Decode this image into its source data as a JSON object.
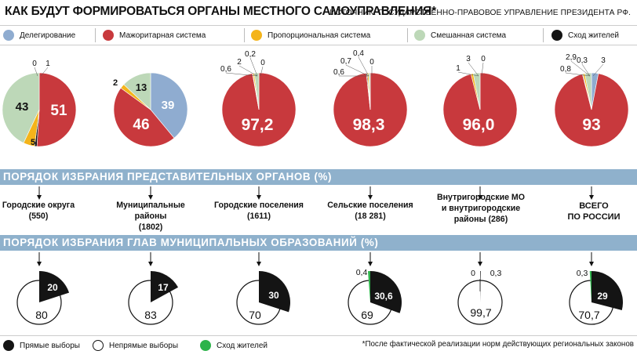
{
  "header": {
    "title": "КАК БУДУТ ФОРМИРОВАТЬСЯ ОРГАНЫ МЕСТНОГО САМОУПРАВЛЕНИЯ*",
    "source": "ИСТОЧНИК: ГОСУДАРСТВЕННО-ПРАВОВОЕ УПРАВЛЕНИЕ ПРЕЗИДЕНТА РФ."
  },
  "legend_top": [
    {
      "label": "Делегирование",
      "color": "#8facd0"
    },
    {
      "label": "Мажоритарная система",
      "color": "#c8393d"
    },
    {
      "label": "Пропорциональная система",
      "color": "#f4b41a"
    },
    {
      "label": "Смешанная система",
      "color": "#bdd8b8"
    },
    {
      "label": "Сход жителей",
      "color": "#141414"
    }
  ],
  "bands": {
    "representative": "ПОРЯДОК ИЗБРАНИЯ ПРЕДСТАВИТЕЛЬНЫХ ОРГАНОВ (%)",
    "heads": "ПОРЯДОК ИЗБРАНИЯ ГЛАВ МУНИЦИПАЛЬНЫХ ОБРАЗОВАНИЙ (%)"
  },
  "categories": [
    "Городские округа\n(550)",
    "Муниципальные районы\n(1802)",
    "Городские поселения\n(1611)",
    "Сельские поселения\n(18 281)",
    "Внутригородские МО\nи внутригородские\nрайоны (286)",
    "ВСЕГО\nПО РОССИИ"
  ],
  "legend_bottom": [
    {
      "label": "Прямые выборы",
      "color": "#141414"
    },
    {
      "label": "Непрямые выборы",
      "color": "#ffffff"
    },
    {
      "label": "Сход жителей",
      "color": "#2db34a"
    }
  ],
  "footnote": "*После фактической реализации норм действующих региональных законов",
  "chart_data": [
    {
      "type": "pie",
      "title": "Порядок избрания представительных органов (%)",
      "categories": [
        "Делегирование",
        "Мажоритарная система",
        "Пропорциональная система",
        "Смешанная система",
        "Сход жителей"
      ],
      "series": [
        {
          "name": "Городские округа (550)",
          "values": [
            0,
            51,
            5,
            43,
            1
          ],
          "labels": [
            "0",
            "51",
            "5",
            "43",
            "1"
          ]
        },
        {
          "name": "Муниципальные районы (1802)",
          "values": [
            39,
            46,
            2,
            13,
            0
          ],
          "labels": [
            "39",
            "46",
            "2",
            "13",
            "0"
          ]
        },
        {
          "name": "Городские поселения (1611)",
          "values": [
            0,
            97.2,
            0.6,
            2,
            0.2
          ],
          "labels": [
            "0",
            "97,2",
            "0,6",
            "2",
            "0,2"
          ]
        },
        {
          "name": "Сельские поселения (18 281)",
          "values": [
            0,
            98.3,
            0.6,
            0.7,
            0.4
          ],
          "labels": [
            "0",
            "98,3",
            "0,6",
            "0,7",
            "0,4"
          ]
        },
        {
          "name": "Внутригородские МО и внутригородские районы (286)",
          "values": [
            0,
            96.0,
            1,
            3,
            0
          ],
          "labels": [
            "0",
            "96,0",
            "1",
            "3",
            "0"
          ]
        },
        {
          "name": "Всего по России",
          "values": [
            3,
            93,
            0.8,
            2.9,
            0.3
          ],
          "labels": [
            "3",
            "93",
            "0,8",
            "2,9",
            "0,3"
          ]
        }
      ]
    },
    {
      "type": "pie",
      "title": "Порядок избрания глав муниципальных образований (%)",
      "categories": [
        "Прямые выборы",
        "Непрямые выборы",
        "Сход жителей"
      ],
      "series": [
        {
          "name": "Городские округа (550)",
          "values": [
            20,
            80,
            0
          ],
          "labels": [
            "20",
            "80",
            ""
          ]
        },
        {
          "name": "Муниципальные районы (1802)",
          "values": [
            17,
            83,
            0
          ],
          "labels": [
            "17",
            "83",
            ""
          ]
        },
        {
          "name": "Городские поселения (1611)",
          "values": [
            30,
            70,
            0
          ],
          "labels": [
            "30",
            "70",
            ""
          ]
        },
        {
          "name": "Сельские поселения (18 281)",
          "values": [
            30.6,
            69,
            0.4
          ],
          "labels": [
            "30,6",
            "69",
            "0,4"
          ]
        },
        {
          "name": "Внутригородские МО и внутригородские районы (286)",
          "values": [
            0.3,
            99.7,
            0
          ],
          "labels": [
            "0,3",
            "99,7",
            "0"
          ]
        },
        {
          "name": "Всего по России",
          "values": [
            29,
            70.7,
            0.3
          ],
          "labels": [
            "29",
            "70,7",
            "0,3"
          ]
        }
      ]
    }
  ]
}
